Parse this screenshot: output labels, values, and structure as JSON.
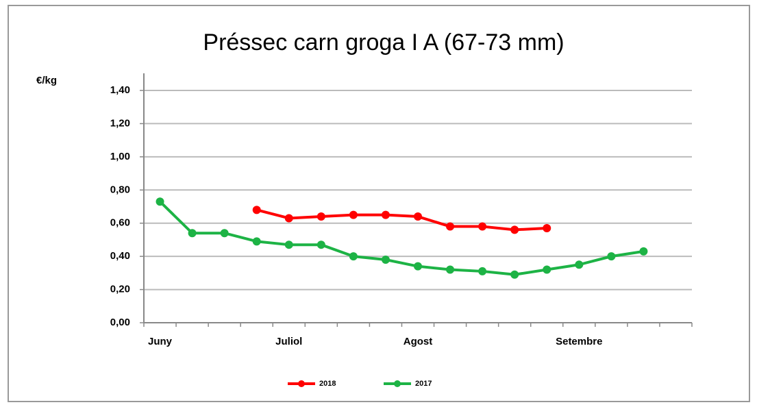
{
  "chart_data": {
    "type": "line",
    "title": "Préssec carn groga I A (67-73 mm)",
    "y_label": "€/kg",
    "categories": [
      "Juny",
      null,
      null,
      null,
      "Juliol",
      null,
      null,
      null,
      "Agost",
      null,
      null,
      null,
      null,
      "Setembre",
      null,
      null,
      null
    ],
    "series": [
      {
        "name": "2018",
        "color": "#ff0000",
        "values": [
          null,
          null,
          null,
          0.68,
          0.63,
          0.64,
          0.65,
          0.65,
          0.64,
          0.58,
          0.58,
          0.56,
          0.57,
          null,
          null,
          null,
          null
        ]
      },
      {
        "name": "2017",
        "color": "#1db345",
        "values": [
          0.73,
          0.54,
          0.54,
          0.49,
          0.47,
          0.47,
          0.4,
          0.38,
          0.34,
          0.32,
          0.31,
          0.29,
          0.32,
          0.35,
          0.4,
          0.43,
          null
        ]
      }
    ],
    "ylim": [
      0,
      1.4
    ],
    "yticks": [
      {
        "value": 0,
        "label": "0,00"
      },
      {
        "value": 0.2,
        "label": "0,20"
      },
      {
        "value": 0.4,
        "label": "0,40"
      },
      {
        "value": 0.6,
        "label": "0,60"
      },
      {
        "value": 0.8,
        "label": "0,80"
      },
      {
        "value": 1.0,
        "label": "1,00"
      },
      {
        "value": 1.2,
        "label": "1,20"
      },
      {
        "value": 1.4,
        "label": "1,40"
      }
    ],
    "grid": true,
    "legend": "bottom"
  }
}
